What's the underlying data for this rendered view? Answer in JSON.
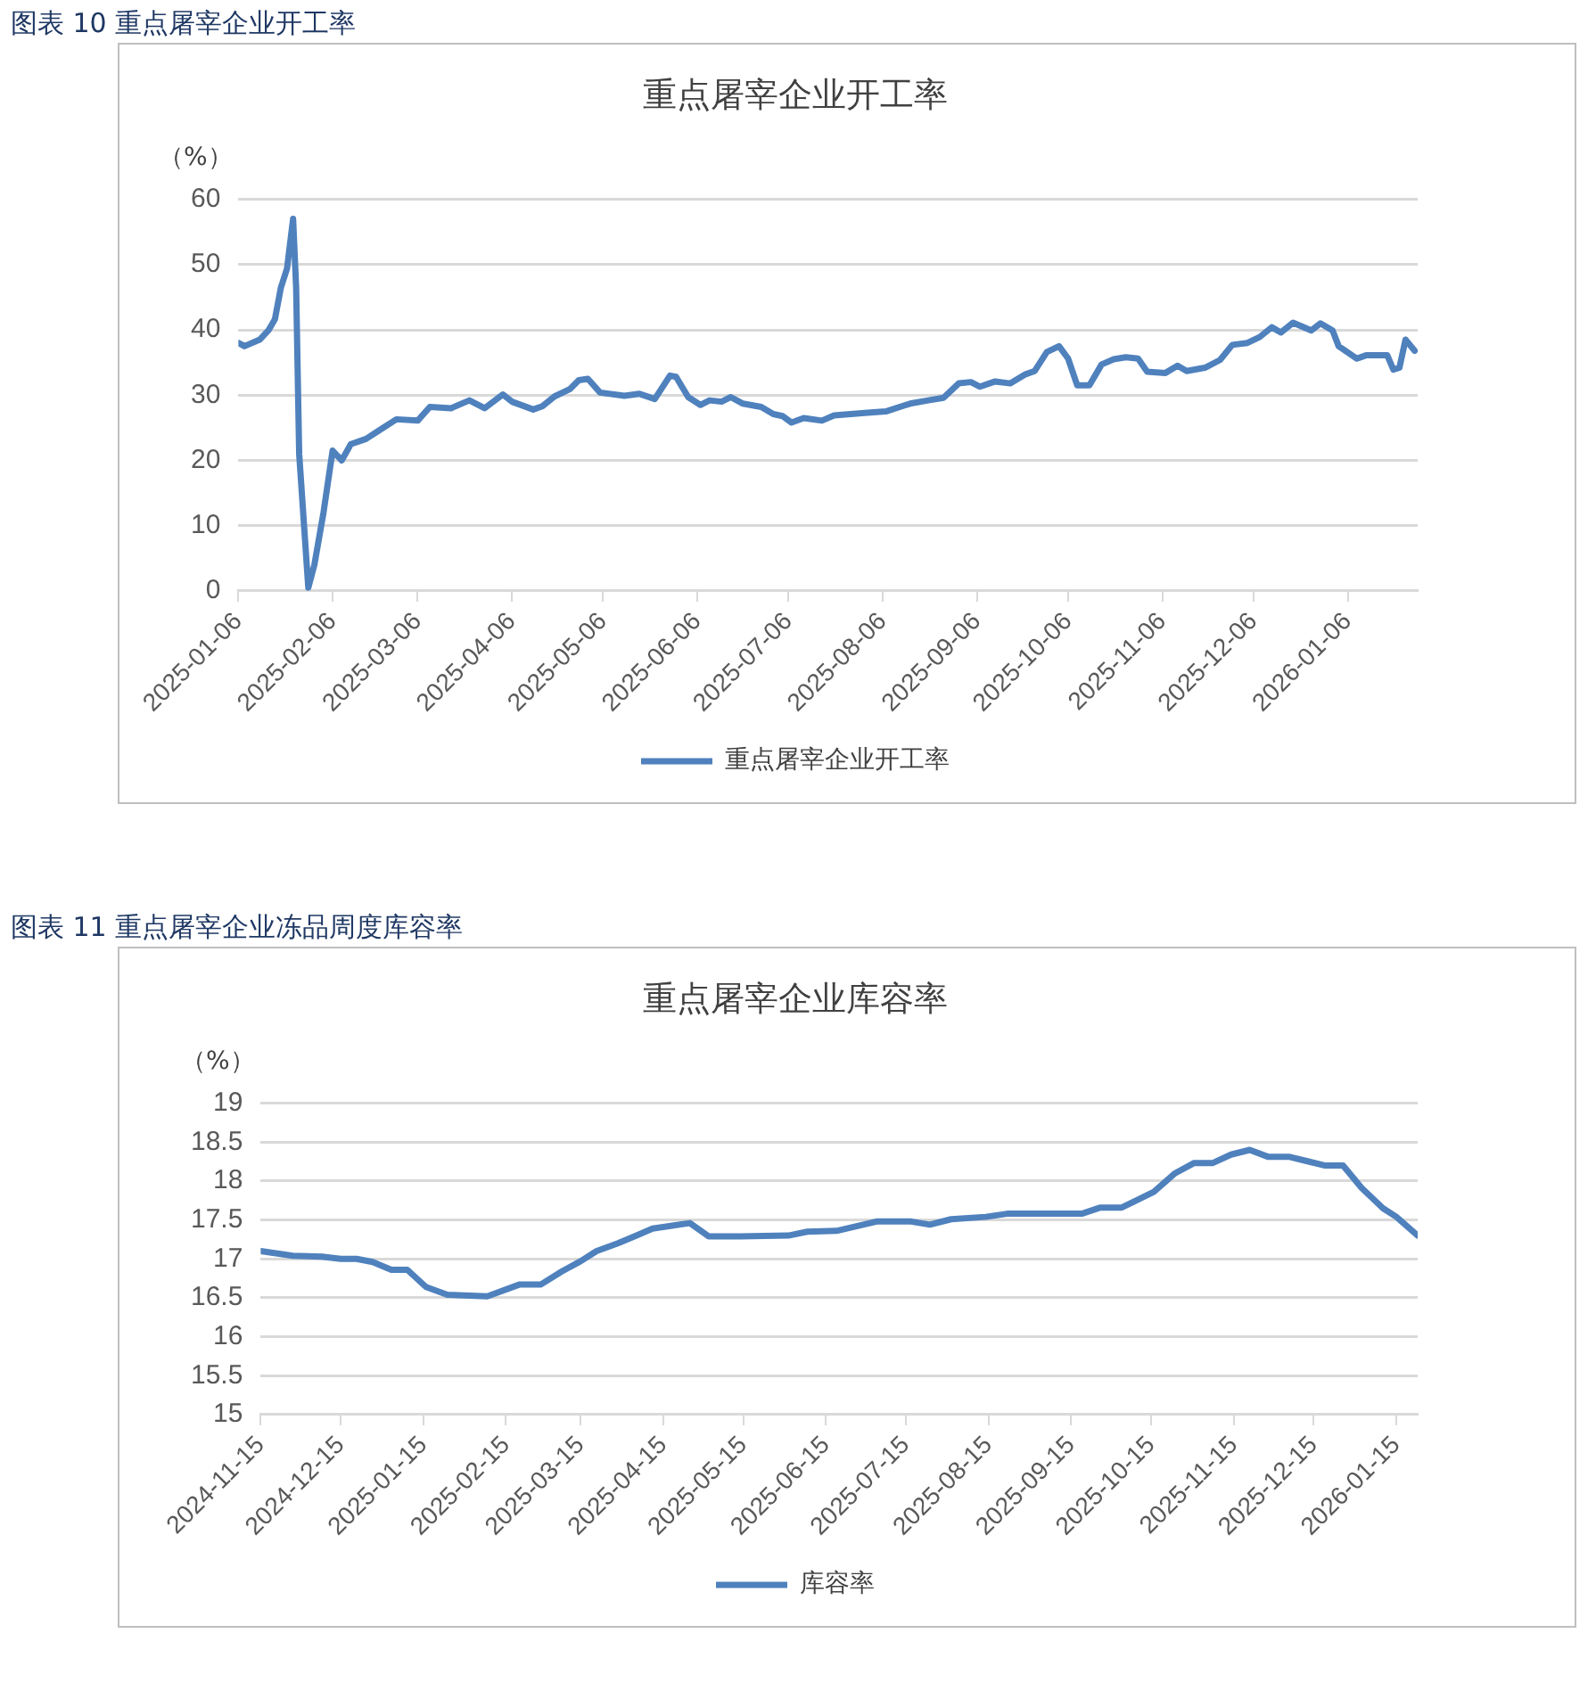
{
  "chart_data": [
    {
      "type": "line",
      "title": "重点屠宰企业开工率",
      "ylabel": "（%）",
      "annotations": [
        "图表 10  重点屠宰企业开工率"
      ],
      "x": [
        "2025-01-06",
        "2025-01-08",
        "2025-01-13",
        "2025-01-16",
        "2025-01-18",
        "2025-01-20",
        "2025-01-22",
        "2025-01-24",
        "2025-01-25",
        "2025-01-26",
        "2025-01-29",
        "2025-01-31",
        "2025-02-03",
        "2025-02-06",
        "2025-02-09",
        "2025-02-12",
        "2025-02-17",
        "2025-02-21",
        "2025-02-27",
        "2025-03-06",
        "2025-03-10",
        "2025-03-17",
        "2025-03-23",
        "2025-03-28",
        "2025-04-03",
        "2025-04-06",
        "2025-04-13",
        "2025-04-16",
        "2025-04-20",
        "2025-04-25",
        "2025-04-28",
        "2025-05-01",
        "2025-05-05",
        "2025-05-13",
        "2025-05-18",
        "2025-05-23",
        "2025-05-28",
        "2025-05-30",
        "2025-06-03",
        "2025-06-07",
        "2025-06-10",
        "2025-06-14",
        "2025-06-17",
        "2025-06-21",
        "2025-06-27",
        "2025-07-01",
        "2025-07-04",
        "2025-07-07",
        "2025-07-11",
        "2025-07-17",
        "2025-07-21",
        "2025-08-01",
        "2025-08-07",
        "2025-08-15",
        "2025-08-21",
        "2025-08-26",
        "2025-08-31",
        "2025-09-04",
        "2025-09-07",
        "2025-09-12",
        "2025-09-17",
        "2025-09-22",
        "2025-09-25",
        "2025-09-29",
        "2025-10-03",
        "2025-10-06",
        "2025-10-09",
        "2025-10-13",
        "2025-10-17",
        "2025-10-21",
        "2025-10-25",
        "2025-10-29",
        "2025-11-01",
        "2025-11-07",
        "2025-11-11",
        "2025-11-14",
        "2025-11-20",
        "2025-11-25",
        "2025-11-29",
        "2025-12-04",
        "2025-12-08",
        "2025-12-12",
        "2025-12-15",
        "2025-12-19",
        "2025-12-25",
        "2025-12-28",
        "2026-01-01",
        "2026-01-03",
        "2026-01-09",
        "2026-01-12",
        "2026-01-19",
        "2026-01-21",
        "2026-01-23",
        "2026-01-25",
        "2026-01-28"
      ],
      "series": [
        {
          "name": "重点屠宰企业开工率",
          "color": "#4f81bd",
          "values": [
            38,
            37.5,
            38.5,
            40,
            41.6,
            46.5,
            49.4,
            57,
            46.5,
            21,
            0.5,
            4,
            12,
            21.5,
            20,
            22.5,
            23.3,
            24.5,
            26.3,
            26.1,
            28.2,
            28,
            29.2,
            28,
            30.1,
            29,
            27.8,
            28.3,
            29.8,
            30.9,
            32.3,
            32.5,
            30.4,
            29.9,
            30.2,
            29.4,
            33,
            32.8,
            29.7,
            28.5,
            29.2,
            29,
            29.7,
            28.7,
            28.2,
            27.1,
            26.8,
            25.8,
            26.5,
            26.1,
            26.9,
            27.3,
            27.5,
            28.7,
            29.2,
            29.6,
            31.8,
            32,
            31.3,
            32.1,
            31.8,
            33.2,
            33.7,
            36.6,
            37.5,
            35.6,
            31.5,
            31.5,
            34.7,
            35.5,
            35.8,
            35.6,
            33.6,
            33.4,
            34.5,
            33.7,
            34.2,
            35.4,
            37.7,
            38,
            38.9,
            40.4,
            39.6,
            41.1,
            39.9,
            41,
            39.9,
            37.5,
            35.6,
            36.1,
            36.1,
            33.9,
            34.2,
            38.5,
            36.8
          ]
        }
      ],
      "xlim": [
        "2025-01-06",
        "2026-01-29"
      ],
      "xticks": [
        "2025-01-06",
        "2025-02-06",
        "2025-03-06",
        "2025-04-06",
        "2025-05-06",
        "2025-06-06",
        "2025-07-06",
        "2025-08-06",
        "2025-09-06",
        "2025-10-06",
        "2025-11-06",
        "2025-12-06",
        "2026-01-06"
      ],
      "ylim": [
        0,
        60
      ],
      "yticks": [
        0,
        10,
        20,
        30,
        40,
        50,
        60
      ],
      "grid": "y",
      "legend": "bottom",
      "marker": "none",
      "line_style": "solid"
    },
    {
      "type": "line",
      "title": "重点屠宰企业库容率",
      "ylabel": "（%）",
      "annotations": [
        "图表 11  重点屠宰企业冻品周度库容率"
      ],
      "x": [
        "2024-11-15",
        "2024-11-27",
        "2024-12-08",
        "2024-12-15",
        "2024-12-21",
        "2024-12-27",
        "2025-01-03",
        "2025-01-09",
        "2025-01-16",
        "2025-01-24",
        "2025-02-08",
        "2025-02-20",
        "2025-02-28",
        "2025-03-08",
        "2025-03-15",
        "2025-03-21",
        "2025-03-29",
        "2025-04-05",
        "2025-04-11",
        "2025-04-25",
        "2025-05-02",
        "2025-05-14",
        "2025-06-01",
        "2025-06-08",
        "2025-06-19",
        "2025-07-04",
        "2025-07-17",
        "2025-07-24",
        "2025-08-01",
        "2025-08-14",
        "2025-08-22",
        "2025-09-19",
        "2025-09-26",
        "2025-10-04",
        "2025-10-16",
        "2025-10-24",
        "2025-10-31",
        "2025-11-07",
        "2025-11-14",
        "2025-11-21",
        "2025-11-28",
        "2025-12-06",
        "2025-12-12",
        "2025-12-19",
        "2025-12-26",
        "2026-01-02",
        "2026-01-10",
        "2026-01-15",
        "2026-01-23"
      ],
      "series": [
        {
          "name": "库容率",
          "color": "#4f81bd",
          "values": [
            17.1,
            17.04,
            17.03,
            17,
            17,
            16.96,
            16.86,
            16.86,
            16.64,
            16.54,
            16.52,
            16.67,
            16.67,
            16.84,
            16.97,
            17.1,
            17.2,
            17.3,
            17.39,
            17.46,
            17.29,
            17.29,
            17.3,
            17.35,
            17.36,
            17.48,
            17.48,
            17.44,
            17.51,
            17.54,
            17.58,
            17.58,
            17.66,
            17.66,
            17.86,
            18.1,
            18.23,
            18.23,
            18.34,
            18.4,
            18.31,
            18.31,
            18.26,
            18.2,
            18.2,
            17.91,
            17.65,
            17.54,
            17.3
          ]
        }
      ],
      "xlim": [
        "2024-11-15",
        "2026-01-23"
      ],
      "xticks": [
        "2024-11-15",
        "2024-12-15",
        "2025-01-15",
        "2025-02-15",
        "2025-03-15",
        "2025-04-15",
        "2025-05-15",
        "2025-06-15",
        "2025-07-15",
        "2025-08-15",
        "2025-09-15",
        "2025-10-15",
        "2025-11-15",
        "2025-12-15",
        "2026-01-15"
      ],
      "ylim": [
        15,
        19
      ],
      "yticks": [
        15,
        15.5,
        16,
        16.5,
        17,
        17.5,
        18,
        18.5,
        19
      ],
      "grid": "y",
      "legend": "bottom",
      "marker": "none",
      "line_style": "solid"
    }
  ]
}
